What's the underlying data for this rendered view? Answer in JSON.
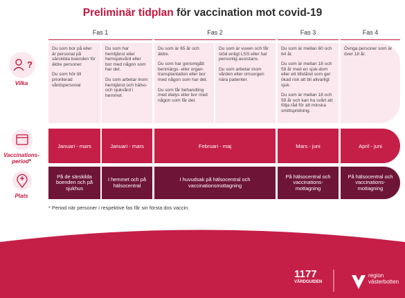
{
  "header": {
    "title_highlight": "Preliminär tidplan",
    "title_rest": "för vaccination mot covid-19"
  },
  "phases": [
    "Fas 1",
    "Fas 2",
    "Fas 3",
    "Fas 4"
  ],
  "row_labels": [
    "Vilka",
    "Vaccinations-period*",
    "Plats"
  ],
  "vilka": [
    [
      "Du som bor på eller är personal på särskilda boenden för äldre personer.",
      "Du som hör till prioriterad vårdspersonal"
    ],
    [
      "Du som har hemtjänst eller hemsjukvård eller bor med någon som har det.",
      "Du som arbetar inom hemtjänst och hälso- och sjukvård i hemmet."
    ],
    [
      "Du som är 65 år och äldre.",
      "Du som har genomgått benmärgs- eller organ-transplantation eller bor med någon som har det.",
      "Du som får behandling med dialys eller bor med någon som får det."
    ],
    [
      "Du som är vuxen och får stöd enligt LSS eller har personlig assistans.",
      "Du som arbetar inom vården eller omsorgen nära patienter."
    ],
    [
      "Du som är mellan 60 och 64 år.",
      "Du som är mellan 18 och 59 år med en sjuk-dom eller ett tillstånd som ger ökad risk att bli allvarligt sjuk.",
      "Du som är mellan 18 och 59 år och kan ha svårt att följa råd för att minska smittspridning."
    ],
    [
      "Övriga personer som är över 18 år."
    ]
  ],
  "period": [
    "Januari - mars",
    "Januari - mars",
    "Februari - maj",
    "Mars - juni",
    "April - juni"
  ],
  "plats": [
    "På de särskilda boenden och på sjukhus",
    "I hemmet och på hälsocentral",
    "I huvudsak på hälsocentral och vaccinationsmottagning",
    "På hälsocentral och vaccinations-mottagning",
    "På hälsocentral och vaccinations-mottagning"
  ],
  "footnote": "* Period när personer i respektive fas får sin första dos vaccin.",
  "logos": {
    "vardguiden_number": "1177",
    "vardguiden_name": "VÅRDGUIDEN",
    "region_line1": "region",
    "region_line2": "västerbotten"
  }
}
